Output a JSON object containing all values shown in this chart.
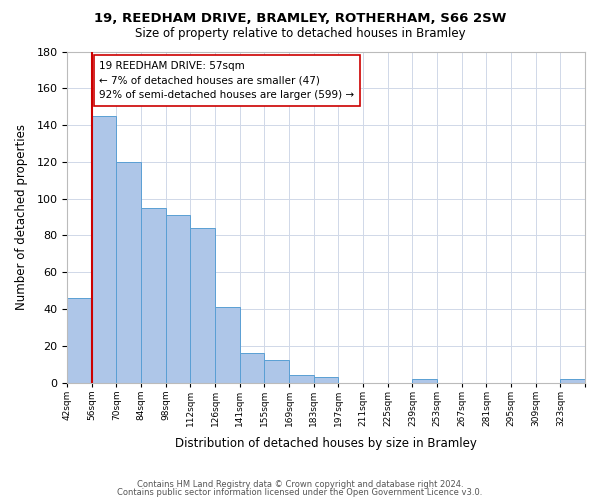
{
  "title1": "19, REEDHAM DRIVE, BRAMLEY, ROTHERHAM, S66 2SW",
  "title2": "Size of property relative to detached houses in Bramley",
  "xlabel": "Distribution of detached houses by size in Bramley",
  "ylabel": "Number of detached properties",
  "footer1": "Contains HM Land Registry data © Crown copyright and database right 2024.",
  "footer2": "Contains public sector information licensed under the Open Government Licence v3.0.",
  "bin_labels": [
    "42sqm",
    "56sqm",
    "70sqm",
    "84sqm",
    "98sqm",
    "112sqm",
    "126sqm",
    "141sqm",
    "155sqm",
    "169sqm",
    "183sqm",
    "197sqm",
    "211sqm",
    "225sqm",
    "239sqm",
    "253sqm",
    "267sqm",
    "281sqm",
    "295sqm",
    "309sqm",
    "323sqm"
  ],
  "bar_heights": [
    46,
    145,
    120,
    95,
    91,
    84,
    41,
    16,
    12,
    4,
    3,
    0,
    0,
    0,
    2,
    0,
    0,
    0,
    0,
    0,
    2
  ],
  "bar_color": "#aec6e8",
  "bar_edge_color": "#5a9fd4",
  "vline_x": 1.0,
  "vline_color": "#cc0000",
  "annotation_text": "19 REEDHAM DRIVE: 57sqm\n← 7% of detached houses are smaller (47)\n92% of semi-detached houses are larger (599) →",
  "annotation_box_color": "#ffffff",
  "annotation_box_edge": "#cc0000",
  "ylim": [
    0,
    180
  ],
  "yticks": [
    0,
    20,
    40,
    60,
    80,
    100,
    120,
    140,
    160,
    180
  ],
  "grid_color": "#d0d8e8",
  "bg_color": "#ffffff"
}
